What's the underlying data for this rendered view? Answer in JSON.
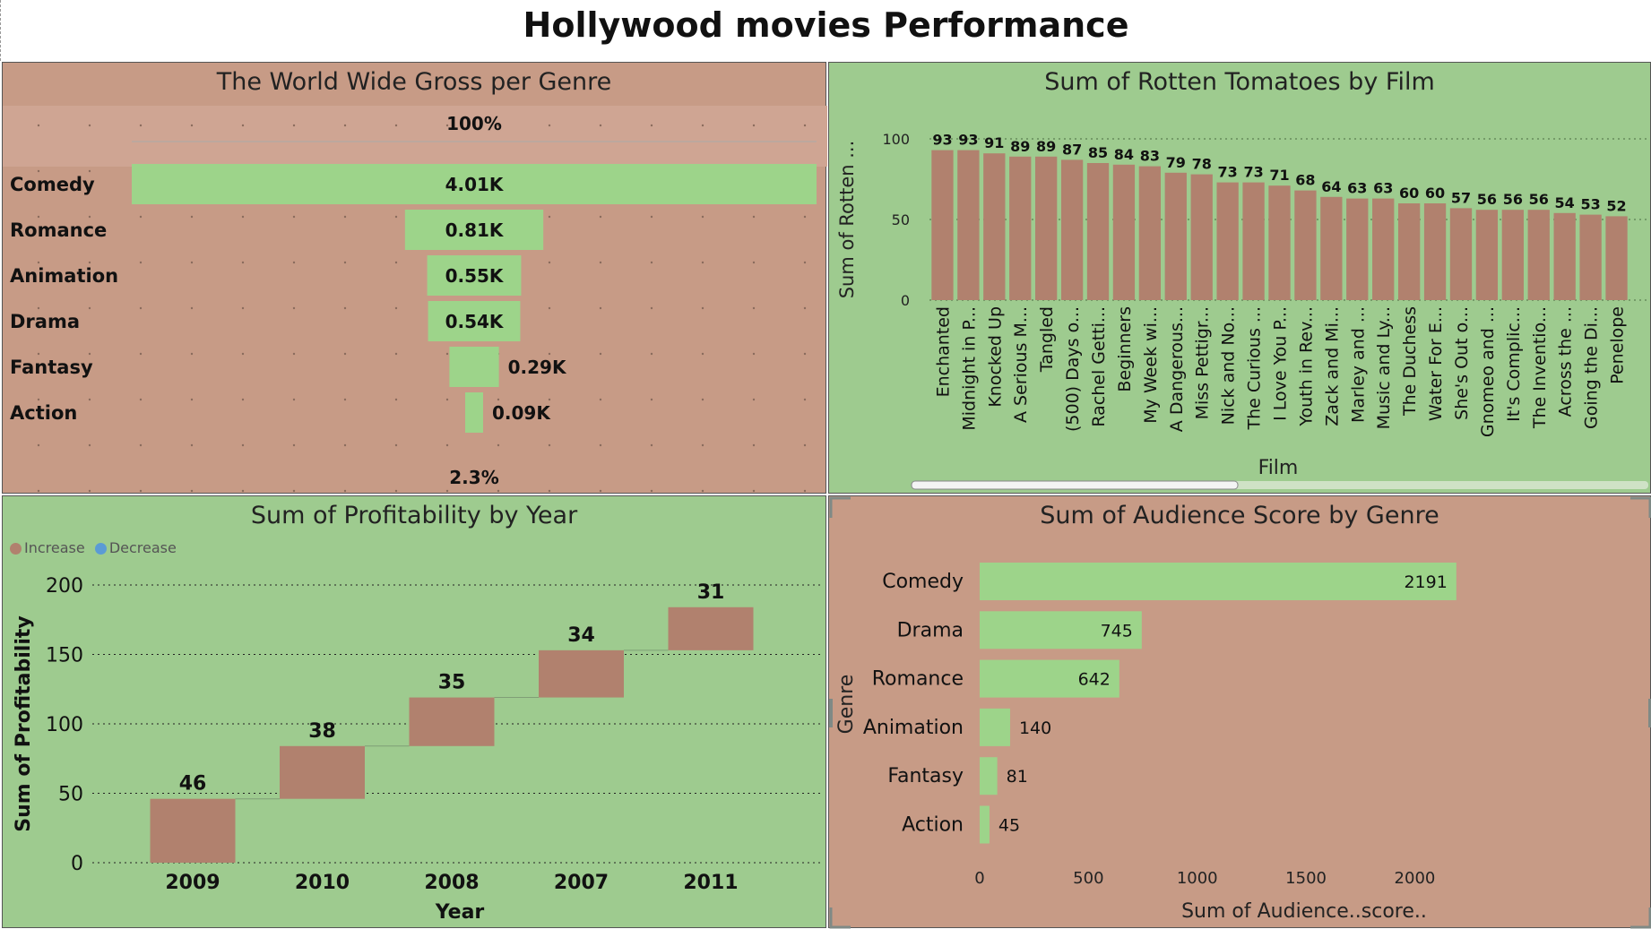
{
  "page": {
    "title": "Hollywood movies Performance"
  },
  "colors": {
    "green_bar": "#9dd48a",
    "brown_bar": "#b1816e",
    "green_panel": "#9ecb8f",
    "brown_panel": "#c79b86",
    "increase": "#b1816e",
    "decrease": "#5b9bd5"
  },
  "panels": {
    "gross": {
      "title": "The World Wide Gross per Genre"
    },
    "rotten": {
      "title": "Sum of Rotten Tomatoes by Film"
    },
    "profit": {
      "title": "Sum of Profitability by Year",
      "legend_increase": "Increase",
      "legend_decrease": "Decrease"
    },
    "audience": {
      "title": "Sum of Audience Score by Genre"
    }
  },
  "chart_data": [
    {
      "type": "bar",
      "subtype": "funnel",
      "title": "The World Wide Gross per Genre",
      "categories": [
        "Comedy",
        "Romance",
        "Animation",
        "Drama",
        "Fantasy",
        "Action"
      ],
      "values": [
        4010,
        810,
        550,
        540,
        290,
        90
      ],
      "labels": [
        "4.01K",
        "0.81K",
        "0.55K",
        "0.54K",
        "0.29K",
        "0.09K"
      ],
      "top_label": "100%",
      "bottom_label": "2.3%"
    },
    {
      "type": "bar",
      "title": "Sum of Rotten Tomatoes by Film",
      "xlabel": "Film",
      "ylabel": "Sum of Rotten ...",
      "ylim": [
        0,
        100
      ],
      "yticks": [
        "0",
        "50",
        "100"
      ],
      "categories": [
        "Enchanted",
        "Midnight in P...",
        "Knocked Up",
        "A Serious M...",
        "Tangled",
        "(500) Days o...",
        "Rachel Getti...",
        "Beginners",
        "My Week wi...",
        "A Dangerous...",
        "Miss Pettigr...",
        "Nick and No...",
        "The Curious ...",
        "I Love You P...",
        "Youth in Rev...",
        "Zack and Mi...",
        "Marley and ...",
        "Music and Ly...",
        "The Duchess",
        "Water For E...",
        "She's Out o...",
        "Gnomeo and ...",
        "It's Complic...",
        "The Inventio...",
        "Across the ...",
        "Going the Di...",
        "Penelope"
      ],
      "values": [
        93,
        93,
        91,
        89,
        89,
        87,
        85,
        84,
        83,
        79,
        78,
        73,
        73,
        71,
        68,
        64,
        63,
        63,
        60,
        60,
        57,
        56,
        56,
        56,
        54,
        53,
        52
      ]
    },
    {
      "type": "bar",
      "subtype": "waterfall",
      "title": "Sum of Profitability by Year",
      "xlabel": "Year",
      "ylabel": "Sum of Profitability",
      "ylim": [
        0,
        200
      ],
      "yticks": [
        "0",
        "50",
        "100",
        "150",
        "200"
      ],
      "categories": [
        "2009",
        "2010",
        "2008",
        "2007",
        "2011"
      ],
      "values": [
        46,
        38,
        35,
        34,
        31
      ],
      "legend": [
        "Increase",
        "Decrease"
      ]
    },
    {
      "type": "bar",
      "orientation": "horizontal",
      "title": "Sum of Audience Score by Genre",
      "xlabel": "Sum of Audience..score..",
      "ylabel": "Genre",
      "xlim": [
        0,
        2200
      ],
      "xticks": [
        "0",
        "500",
        "1000",
        "1500",
        "2000"
      ],
      "categories": [
        "Comedy",
        "Drama",
        "Romance",
        "Animation",
        "Fantasy",
        "Action"
      ],
      "values": [
        2191,
        745,
        642,
        140,
        81,
        45
      ]
    }
  ]
}
